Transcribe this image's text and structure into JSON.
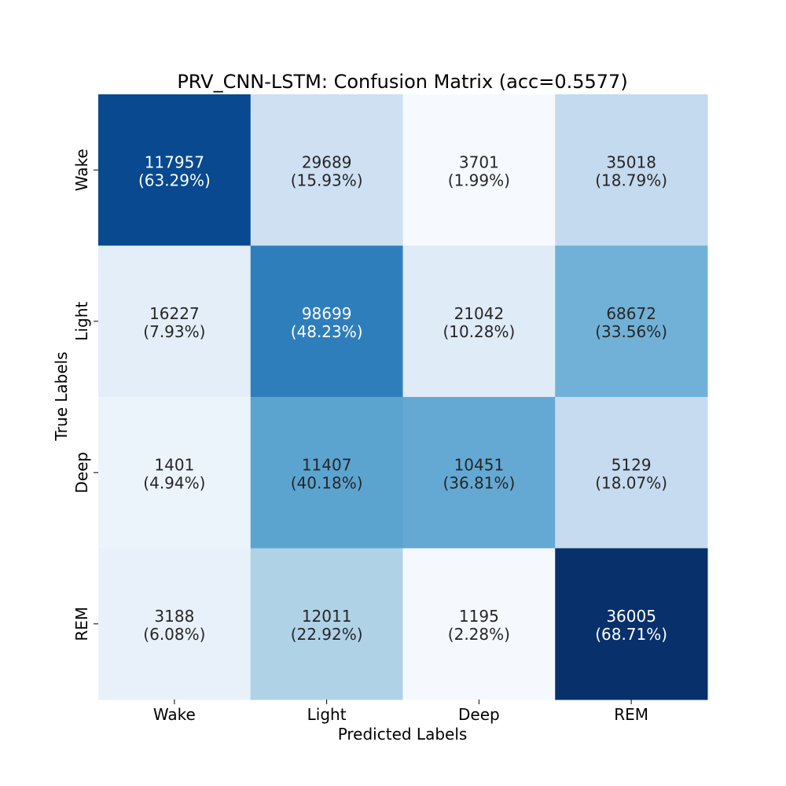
{
  "chart_data": {
    "type": "heatmap",
    "title": "PRV_CNN-LSTM: Confusion Matrix (acc=0.5577)",
    "xlabel": "Predicted Labels",
    "ylabel": "True Labels",
    "x_categories": [
      "Wake",
      "Light",
      "Deep",
      "REM"
    ],
    "y_categories": [
      "Wake",
      "Light",
      "Deep",
      "REM"
    ],
    "colormap": "Blues",
    "colorbar": false,
    "counts": [
      [
        117957,
        29689,
        3701,
        35018
      ],
      [
        16227,
        98699,
        21042,
        68672
      ],
      [
        1401,
        11407,
        10451,
        5129
      ],
      [
        3188,
        12011,
        1195,
        36005
      ]
    ],
    "percentages": [
      [
        "63.29%",
        "15.93%",
        "1.99%",
        "18.79%"
      ],
      [
        "7.93%",
        "48.23%",
        "10.28%",
        "33.56%"
      ],
      [
        "4.94%",
        "40.18%",
        "36.81%",
        "18.07%"
      ],
      [
        "6.08%",
        "22.92%",
        "2.28%",
        "68.71%"
      ]
    ],
    "cell_colors": [
      [
        "#084990",
        "#cee0f2",
        "#f6faff",
        "#c4daee"
      ],
      [
        "#e3eef8",
        "#2e7ebc",
        "#dfebf7",
        "#71b1d7"
      ],
      [
        "#ecf4fb",
        "#5ca4d0",
        "#64a9d3",
        "#c6dbef"
      ],
      [
        "#e8f1fa",
        "#b0d2e7",
        "#f5f9fe",
        "#08306b"
      ]
    ],
    "text_colors": {
      "dark": "#262626",
      "light": "#ffffff"
    }
  }
}
